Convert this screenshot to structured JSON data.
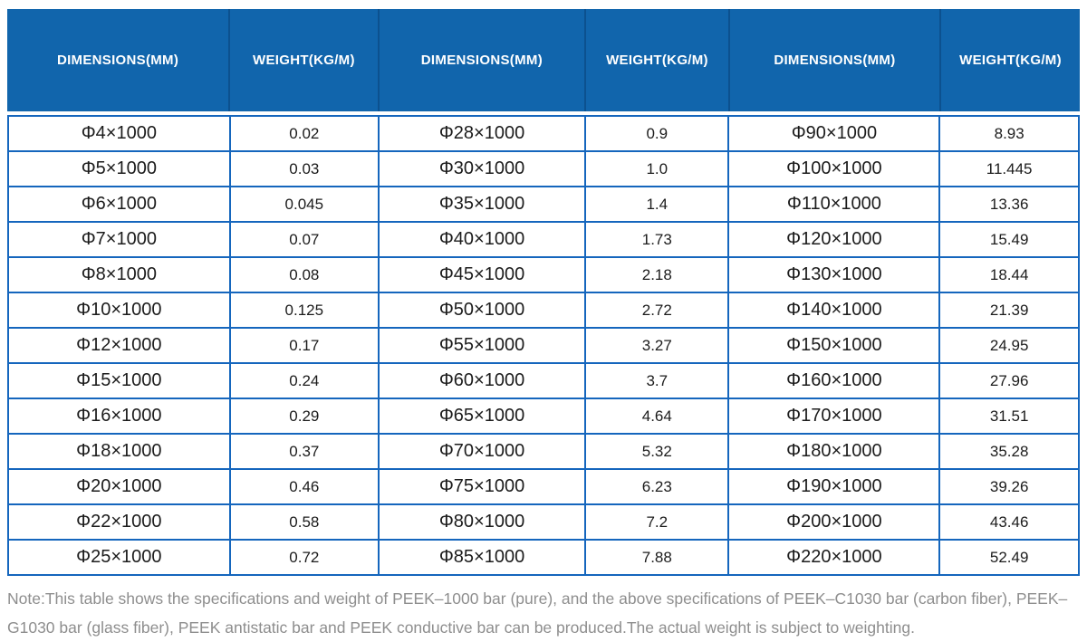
{
  "header": {
    "columns": [
      "DIMENSIONS(MM)",
      "WEIGHT(KG/M)",
      "DIMENSIONS(MM)",
      "WEIGHT(KG/M)",
      "DIMENSIONS(MM)",
      "WEIGHT(KG/M)"
    ]
  },
  "table": {
    "rows": [
      [
        "Φ4×1000",
        "0.02",
        "Φ28×1000",
        "0.9",
        "Φ90×1000",
        "8.93"
      ],
      [
        "Φ5×1000",
        "0.03",
        "Φ30×1000",
        "1.0",
        "Φ100×1000",
        "11.445"
      ],
      [
        "Φ6×1000",
        "0.045",
        "Φ35×1000",
        "1.4",
        "Φ110×1000",
        "13.36"
      ],
      [
        "Φ7×1000",
        "0.07",
        "Φ40×1000",
        "1.73",
        "Φ120×1000",
        "15.49"
      ],
      [
        "Φ8×1000",
        "0.08",
        "Φ45×1000",
        "2.18",
        "Φ130×1000",
        "18.44"
      ],
      [
        "Φ10×1000",
        "0.125",
        "Φ50×1000",
        "2.72",
        "Φ140×1000",
        "21.39"
      ],
      [
        "Φ12×1000",
        "0.17",
        "Φ55×1000",
        "3.27",
        "Φ150×1000",
        "24.95"
      ],
      [
        "Φ15×1000",
        "0.24",
        "Φ60×1000",
        "3.7",
        "Φ160×1000",
        "27.96"
      ],
      [
        "Φ16×1000",
        "0.29",
        "Φ65×1000",
        "4.64",
        "Φ170×1000",
        "31.51"
      ],
      [
        "Φ18×1000",
        "0.37",
        "Φ70×1000",
        "5.32",
        "Φ180×1000",
        "35.28"
      ],
      [
        "Φ20×1000",
        "0.46",
        "Φ75×1000",
        "6.23",
        "Φ190×1000",
        "39.26"
      ],
      [
        "Φ22×1000",
        "0.58",
        "Φ80×1000",
        "7.2",
        "Φ200×1000",
        "43.46"
      ],
      [
        "Φ25×1000",
        "0.72",
        "Φ85×1000",
        "7.88",
        "Φ220×1000",
        "52.49"
      ]
    ]
  },
  "note": {
    "text": "Note:This table shows the specifications and weight of PEEK–1000 bar (pure), and the above specifications of PEEK–C1030 bar (carbon fiber), PEEK–G1030 bar (glass fiber), PEEK antistatic bar and PEEK conductive bar can be produced.The actual weight is subject to weighting."
  },
  "colors": {
    "header_background": "#1165ac",
    "header_divider": "#0c518f",
    "header_text": "#ffffff",
    "table_border": "#1566bd",
    "body_text": "#1c1c1c",
    "note_text": "#8e8e8e"
  }
}
